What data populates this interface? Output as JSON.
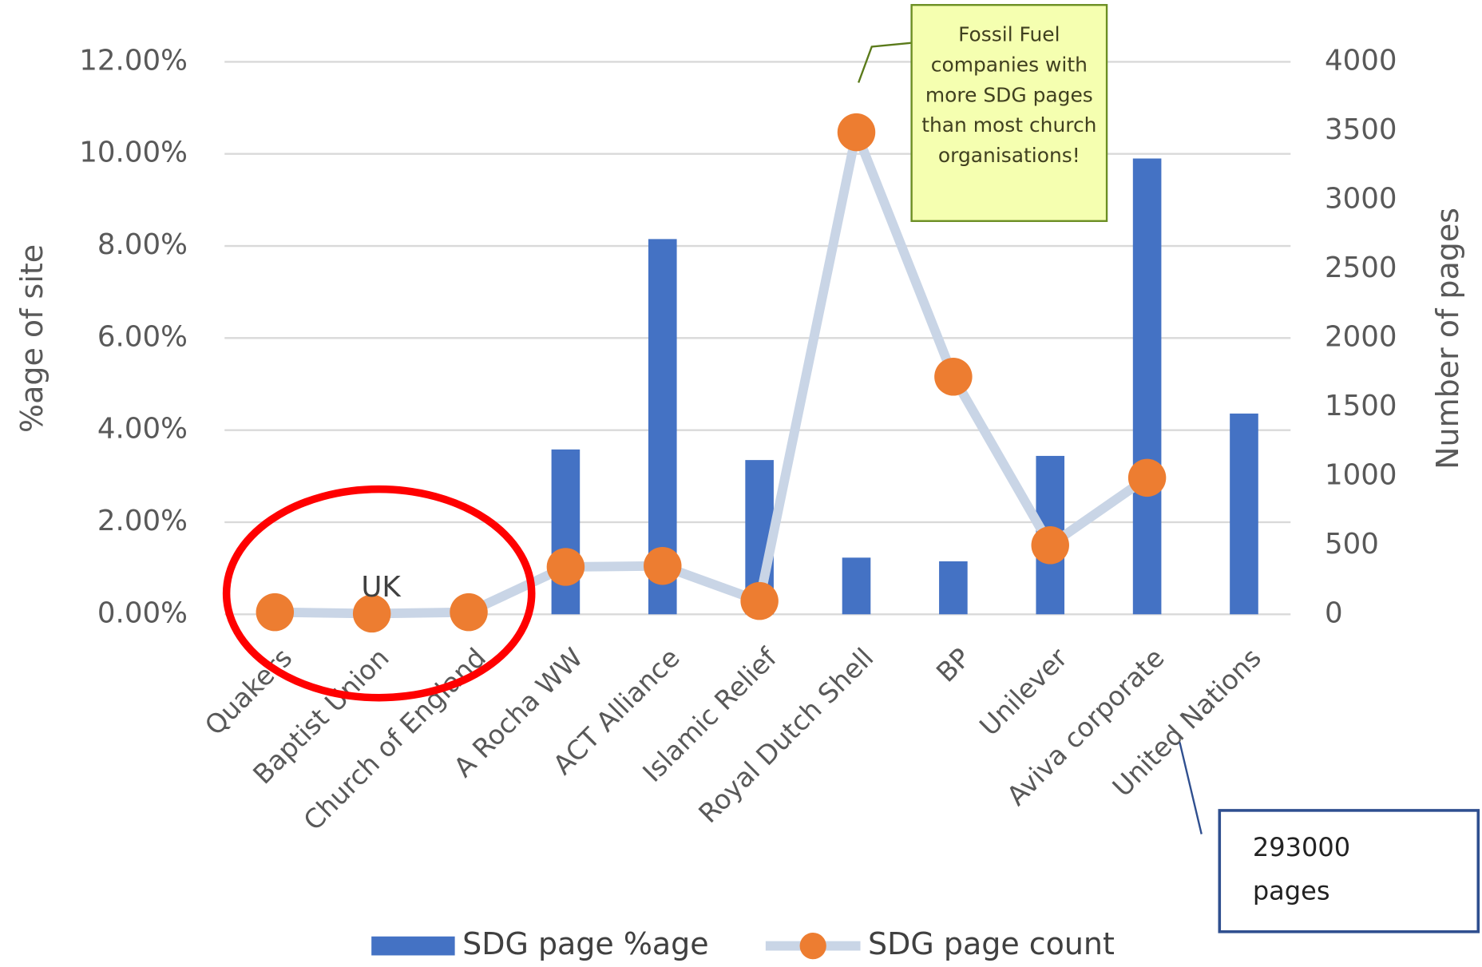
{
  "chart_data": {
    "type": "bar-line",
    "categories": [
      "Quakers",
      "Baptist Union",
      "Church of England",
      "A Rocha WW",
      "ACT Alliance",
      "Islamic Relief",
      "Royal Dutch Shell",
      "BP",
      "Unilever",
      "Aviva corporate",
      "United Nations"
    ],
    "series": [
      {
        "name": "SDG page %age",
        "type": "bar",
        "color": "#4472c4",
        "values": [
          0,
          0,
          0,
          3.58,
          8.15,
          3.35,
          1.23,
          1.15,
          3.44,
          9.9,
          4.36
        ]
      },
      {
        "name": "SDG page count",
        "type": "line",
        "axis": "y2",
        "color": "#ed7d31",
        "line_color": "#c9d5e6",
        "values": [
          15,
          5,
          15,
          343,
          350,
          96,
          3490,
          1720,
          500,
          988,
          null
        ]
      }
    ],
    "y_label": "%age of site",
    "y2_label": "Number of pages",
    "ylim": [
      0,
      12
    ],
    "yticks": [
      {
        "value": 0,
        "label": "0.00%"
      },
      {
        "value": 2,
        "label": "2.00%"
      },
      {
        "value": 4,
        "label": "4.00%"
      },
      {
        "value": 6,
        "label": "6.00%"
      },
      {
        "value": 8,
        "label": "8.00%"
      },
      {
        "value": 10,
        "label": "10.00%"
      },
      {
        "value": 12,
        "label": "12.00%"
      }
    ],
    "y2lim": [
      0,
      4000
    ],
    "y2ticks": [
      0,
      500,
      1000,
      1500,
      2000,
      2500,
      3000,
      3500,
      4000
    ],
    "grid": true,
    "legend": "bottom",
    "annotations": [
      "Fossil Fuel companies with more SDG pages than most church organisations!",
      "293000 pages",
      "UK"
    ]
  }
}
